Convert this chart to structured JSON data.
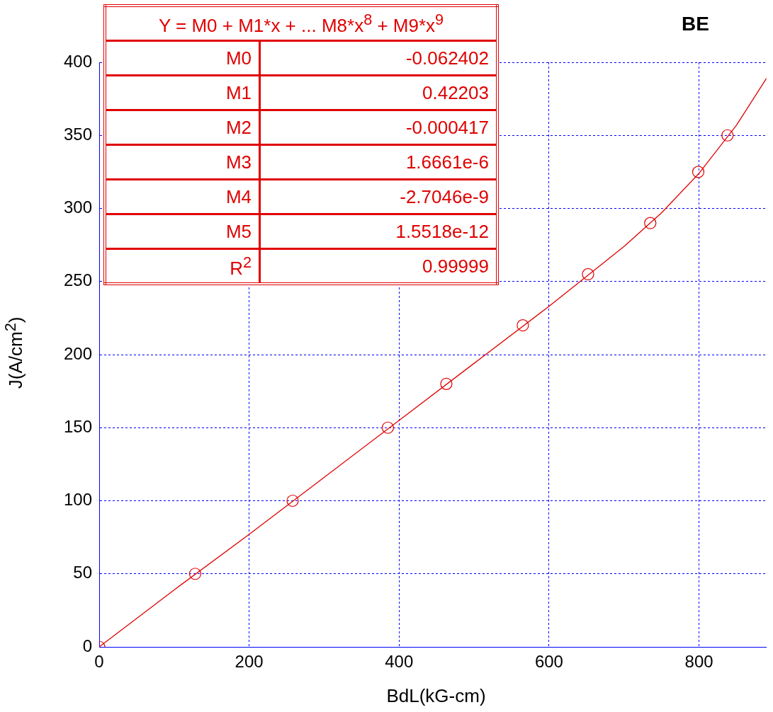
{
  "chart_data": {
    "type": "scatter",
    "title": "BE",
    "xlabel": "BdL(kG-cm)",
    "ylabel": "J(A/cm$^{2}$)",
    "xlim": [
      0,
      890
    ],
    "xticks": [
      0,
      200,
      400,
      600,
      800
    ],
    "ylim": [
      0,
      400
    ],
    "yticks": [
      0,
      50,
      100,
      150,
      200,
      250,
      300,
      350,
      400
    ],
    "grid": true,
    "marker": "circle",
    "series": [
      {
        "color": "#e00000",
        "x": [
          0,
          128,
          258,
          385,
          463,
          565,
          652,
          735,
          799,
          838
        ],
        "values": [
          0,
          50,
          100,
          150,
          180,
          220,
          255,
          290,
          325,
          350
        ]
      },
      {
        "type": "line",
        "color": "#e00000",
        "marker": "none",
        "x": [
          0,
          100,
          200,
          300,
          400,
          500,
          600,
          700,
          750,
          800,
          850,
          890
        ],
        "values": [
          0,
          39,
          77,
          116,
          155,
          194,
          233,
          274,
          297,
          324,
          357,
          389
        ]
      }
    ],
    "annotations": [
      "Y = M0 + M1*x + ... M8*x$^{8}$ + M9*x$^{9}$",
      "M0",
      "-0.062402",
      "M1",
      "0.42203",
      "M2",
      "-0.000417",
      "M3",
      "1.6661e-6",
      "M4",
      "-2.7046e-9",
      "M5",
      "1.5518e-12",
      "R$^{2}$",
      "0.99999"
    ]
  }
}
